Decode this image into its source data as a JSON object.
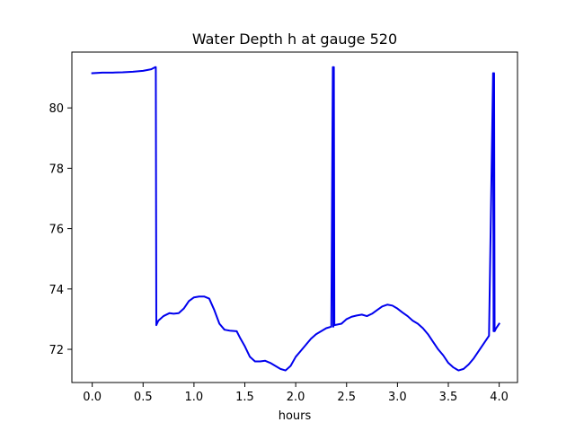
{
  "chart_data": {
    "type": "line",
    "title": "Water Depth h at gauge 520",
    "xlabel": "hours",
    "ylabel": "",
    "xlim": [
      -0.2,
      4.18
    ],
    "ylim": [
      70.9,
      81.85
    ],
    "xticks": [
      0.0,
      0.5,
      1.0,
      1.5,
      2.0,
      2.5,
      3.0,
      3.5,
      4.0
    ],
    "xtick_labels": [
      "0.0",
      "0.5",
      "1.0",
      "1.5",
      "2.0",
      "2.5",
      "3.0",
      "3.5",
      "4.0"
    ],
    "yticks": [
      72,
      74,
      76,
      78,
      80
    ],
    "ytick_labels": [
      "72",
      "74",
      "76",
      "78",
      "80"
    ],
    "grid": false,
    "series": [
      {
        "name": "",
        "color": "#0000ee",
        "x": [
          0.0,
          0.1,
          0.2,
          0.3,
          0.4,
          0.5,
          0.58,
          0.62,
          0.625,
          0.63,
          0.65,
          0.7,
          0.76,
          0.8,
          0.85,
          0.9,
          0.95,
          1.0,
          1.05,
          1.1,
          1.15,
          1.2,
          1.25,
          1.3,
          1.35,
          1.42,
          1.45,
          1.5,
          1.55,
          1.6,
          1.65,
          1.7,
          1.75,
          1.8,
          1.85,
          1.9,
          1.95,
          2.0,
          2.05,
          2.1,
          2.15,
          2.2,
          2.25,
          2.3,
          2.35,
          2.365,
          2.37,
          2.375,
          2.38,
          2.45,
          2.5,
          2.55,
          2.6,
          2.65,
          2.7,
          2.75,
          2.8,
          2.85,
          2.9,
          2.95,
          3.0,
          3.05,
          3.1,
          3.15,
          3.2,
          3.25,
          3.3,
          3.35,
          3.4,
          3.45,
          3.5,
          3.55,
          3.6,
          3.65,
          3.7,
          3.75,
          3.8,
          3.85,
          3.9,
          3.94,
          3.945,
          3.95,
          3.955,
          3.97,
          4.0
        ],
        "y": [
          81.15,
          81.17,
          81.17,
          81.18,
          81.2,
          81.23,
          81.28,
          81.35,
          81.35,
          72.8,
          72.95,
          73.1,
          73.2,
          73.18,
          73.2,
          73.35,
          73.6,
          73.72,
          73.75,
          73.75,
          73.68,
          73.3,
          72.85,
          72.65,
          72.62,
          72.6,
          72.4,
          72.1,
          71.75,
          71.6,
          71.6,
          71.62,
          71.55,
          71.45,
          71.35,
          71.3,
          71.45,
          71.75,
          71.95,
          72.15,
          72.35,
          72.5,
          72.6,
          72.7,
          72.75,
          81.35,
          72.75,
          81.35,
          72.8,
          72.85,
          73.0,
          73.08,
          73.12,
          73.15,
          73.1,
          73.18,
          73.3,
          73.42,
          73.48,
          73.45,
          73.35,
          73.22,
          73.1,
          72.95,
          72.85,
          72.7,
          72.5,
          72.25,
          72.0,
          71.8,
          71.55,
          71.4,
          71.3,
          71.35,
          71.5,
          71.7,
          71.95,
          72.2,
          72.45,
          81.15,
          72.6,
          81.15,
          72.6,
          72.7,
          72.85
        ]
      }
    ]
  }
}
